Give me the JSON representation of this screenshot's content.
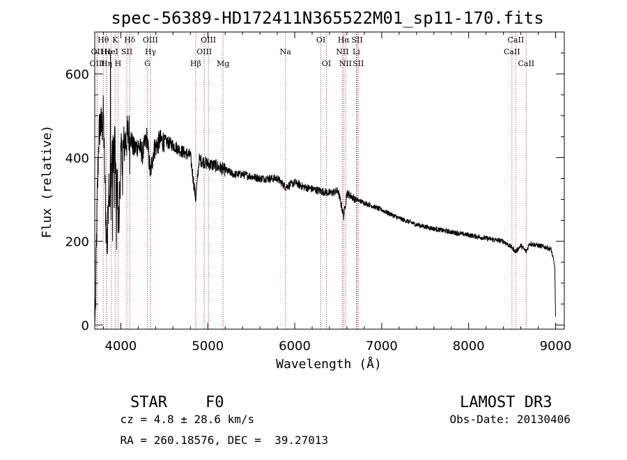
{
  "chart_data": {
    "type": "line",
    "title": "spec-56389-HD172411N365522M01_sp11-170.fits",
    "xlabel": "Wavelength (Å)",
    "ylabel": "Flux (relative)",
    "xlim": [
      3700,
      9100
    ],
    "ylim": [
      -10,
      700
    ],
    "xticks": [
      4000,
      5000,
      6000,
      7000,
      8000,
      9000
    ],
    "xtick_labels": [
      "4000",
      "5000",
      "6000",
      "7000",
      "8000",
      "9000"
    ],
    "yticks": [
      0,
      200,
      400,
      600
    ],
    "ytick_labels": [
      "0",
      "200",
      "400",
      "600"
    ],
    "grid": false,
    "series": [
      {
        "name": "flux",
        "color": "#000000",
        "anchors": [
          [
            3700,
            0
          ],
          [
            3710,
            60
          ],
          [
            3720,
            200
          ],
          [
            3730,
            300
          ],
          [
            3745,
            440
          ],
          [
            3760,
            480
          ],
          [
            3780,
            470
          ],
          [
            3800,
            500
          ],
          [
            3815,
            360
          ],
          [
            3830,
            240
          ],
          [
            3845,
            180
          ],
          [
            3860,
            350
          ],
          [
            3880,
            300
          ],
          [
            3900,
            430
          ],
          [
            3915,
            390
          ],
          [
            3930,
            470
          ],
          [
            3945,
            300
          ],
          [
            3960,
            350
          ],
          [
            3968,
            260
          ],
          [
            3975,
            250
          ],
          [
            4000,
            400
          ],
          [
            4050,
            440
          ],
          [
            4100,
            460
          ],
          [
            4150,
            420
          ],
          [
            4200,
            430
          ],
          [
            4250,
            410
          ],
          [
            4300,
            450
          ],
          [
            4340,
            360
          ],
          [
            4380,
            420
          ],
          [
            4450,
            440
          ],
          [
            4500,
            440
          ],
          [
            4600,
            430
          ],
          [
            4700,
            415
          ],
          [
            4800,
            405
          ],
          [
            4861,
            300
          ],
          [
            4900,
            395
          ],
          [
            5000,
            385
          ],
          [
            5100,
            380
          ],
          [
            5200,
            370
          ],
          [
            5300,
            360
          ],
          [
            5400,
            360
          ],
          [
            5500,
            355
          ],
          [
            5600,
            350
          ],
          [
            5700,
            350
          ],
          [
            5800,
            350
          ],
          [
            5893,
            330
          ],
          [
            6000,
            340
          ],
          [
            6100,
            330
          ],
          [
            6200,
            325
          ],
          [
            6300,
            320
          ],
          [
            6400,
            315
          ],
          [
            6500,
            320
          ],
          [
            6563,
            260
          ],
          [
            6600,
            315
          ],
          [
            6700,
            300
          ],
          [
            6800,
            292
          ],
          [
            7000,
            275
          ],
          [
            7200,
            255
          ],
          [
            7400,
            240
          ],
          [
            7600,
            230
          ],
          [
            7800,
            222
          ],
          [
            8000,
            215
          ],
          [
            8200,
            207
          ],
          [
            8400,
            200
          ],
          [
            8498,
            185
          ],
          [
            8542,
            175
          ],
          [
            8600,
            190
          ],
          [
            8662,
            175
          ],
          [
            8700,
            195
          ],
          [
            8800,
            190
          ],
          [
            8900,
            185
          ],
          [
            8950,
            180
          ],
          [
            8990,
            140
          ],
          [
            9000,
            20
          ]
        ],
        "spikes": [
          [
            3880,
            650
          ],
          [
            3888,
            250
          ],
          [
            3905,
            200
          ],
          [
            3925,
            280
          ],
          [
            3950,
            180
          ],
          [
            3980,
            220
          ],
          [
            4020,
            310
          ],
          [
            4102,
            360
          ]
        ]
      }
    ],
    "lines": [
      {
        "name": "Hθ",
        "x": 3798,
        "row": 0
      },
      {
        "name": "OII",
        "x": 3727,
        "row": 1
      },
      {
        "name": "OIII",
        "x": 3728,
        "row": 2
      },
      {
        "name": "He",
        "x": 3835,
        "row": 1
      },
      {
        "name": "Hη",
        "x": 3836,
        "row": 2
      },
      {
        "name": "K",
        "x": 3934,
        "row": 0
      },
      {
        "name": "HeI",
        "x": 3889,
        "row": 1
      },
      {
        "name": "H",
        "x": 3968,
        "row": 2
      },
      {
        "name": "SII",
        "x": 4069,
        "row": 1
      },
      {
        "name": "Hδ",
        "x": 4102,
        "row": 0
      },
      {
        "name": "OIII",
        "x": 4340,
        "row": 0
      },
      {
        "name": "Hγ",
        "x": 4341,
        "row": 1
      },
      {
        "name": "G",
        "x": 4305,
        "row": 2
      },
      {
        "name": "Hβ",
        "x": 4861,
        "row": 2
      },
      {
        "name": "OIII",
        "x": 5007,
        "row": 0
      },
      {
        "name": "OIII",
        "x": 4959,
        "row": 1
      },
      {
        "name": "Mg",
        "x": 5175,
        "row": 2
      },
      {
        "name": "Na",
        "x": 5893,
        "row": 1
      },
      {
        "name": "OI",
        "x": 6300,
        "row": 0
      },
      {
        "name": "OI",
        "x": 6364,
        "row": 2
      },
      {
        "name": "Hα",
        "x": 6563,
        "row": 0
      },
      {
        "name": "NII",
        "x": 6548,
        "row": 1
      },
      {
        "name": "NII",
        "x": 6584,
        "row": 2
      },
      {
        "name": "SII",
        "x": 6717,
        "row": 0
      },
      {
        "name": "Li",
        "x": 6708,
        "row": 1
      },
      {
        "name": "SII",
        "x": 6731,
        "row": 2
      },
      {
        "name": "CaII",
        "x": 8542,
        "row": 0
      },
      {
        "name": "CaII",
        "x": 8498,
        "row": 1
      },
      {
        "name": "CaII",
        "x": 8662,
        "row": 2
      }
    ]
  },
  "info": {
    "object_class": "STAR",
    "subclass": "F0",
    "survey": "LAMOST DR3",
    "redshift": "cz = 4.8 ± 28.6 km/s",
    "obs_date": "Obs-Date: 20130406",
    "coords": "RA = 260.18576, DEC =  39.27013"
  },
  "colors": {
    "axis": "#000000",
    "trace": "#000000",
    "line_marker": "#b22222"
  }
}
